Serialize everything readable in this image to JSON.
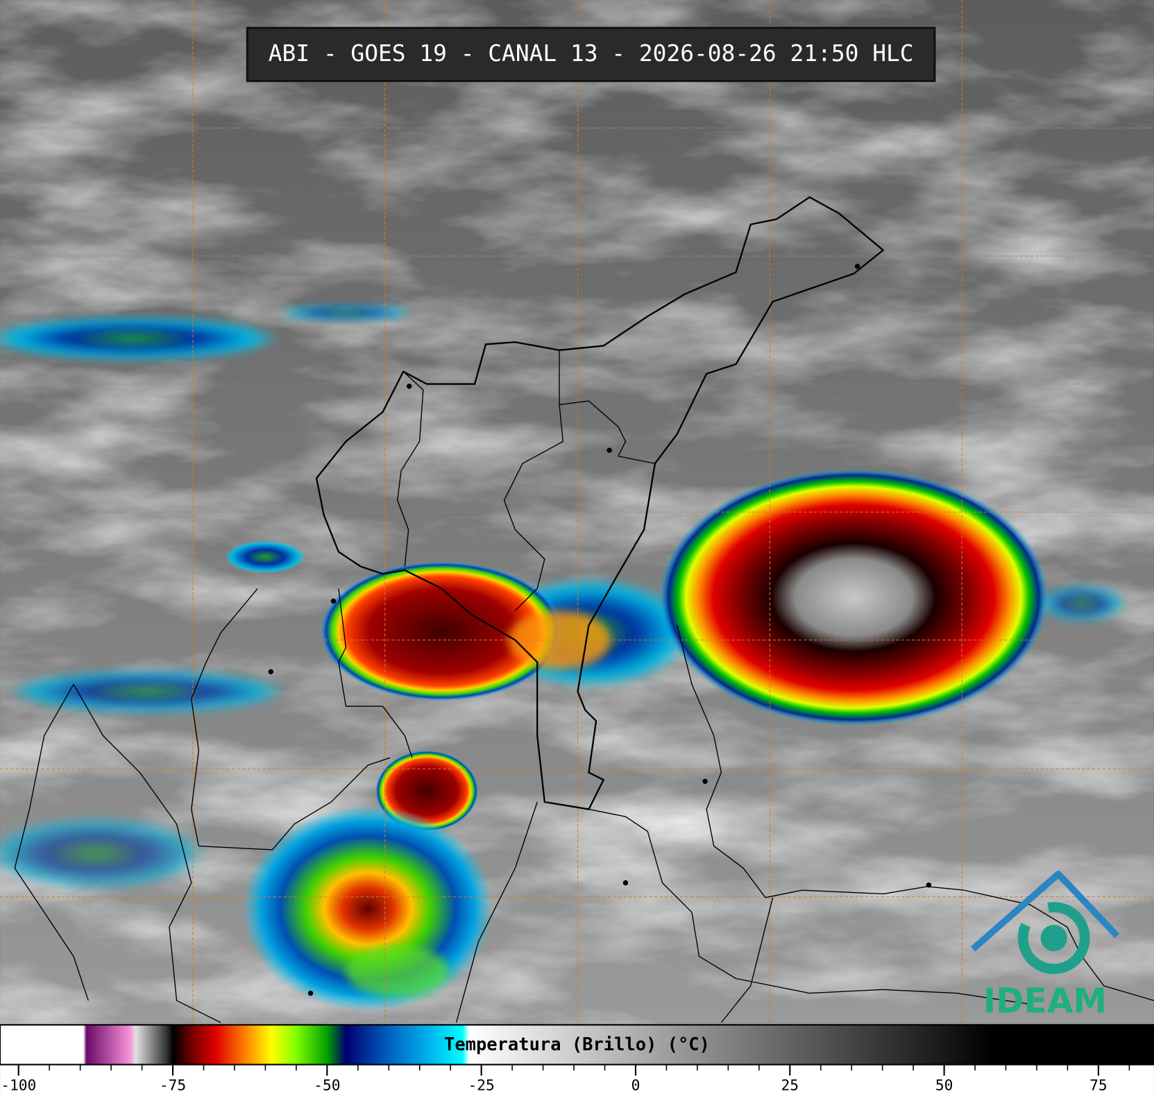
{
  "header": {
    "title": "ABI - GOES 19 - CANAL 13 - 2026-08-26 21:50 HLC"
  },
  "colorbar": {
    "label": "Temperatura (Brillo) (°C)",
    "xlim": [
      -103,
      84
    ],
    "ticks": [
      -100,
      -75,
      -50,
      -25,
      0,
      25,
      50,
      75
    ],
    "minor_ticks": [
      -95,
      -90,
      -85,
      -80,
      -70,
      -65,
      -60,
      -55,
      -45,
      -40,
      -35,
      -30,
      -20,
      -15,
      -10,
      -5,
      5,
      10,
      15,
      20,
      30,
      35,
      40,
      45,
      55,
      60,
      65,
      70,
      80
    ],
    "stops": [
      {
        "value": -103,
        "color": "#ffffff"
      },
      {
        "value": -89.5,
        "color": "#ffffff"
      },
      {
        "value": -89,
        "color": "#6a0a6a"
      },
      {
        "value": -82,
        "color": "#f590d8"
      },
      {
        "value": -81,
        "color": "#e0e0e0"
      },
      {
        "value": -76,
        "color": "#333333"
      },
      {
        "value": -75,
        "color": "#000000"
      },
      {
        "value": -72,
        "color": "#700000"
      },
      {
        "value": -68,
        "color": "#e00000"
      },
      {
        "value": -63,
        "color": "#ff8800"
      },
      {
        "value": -59,
        "color": "#ffff00"
      },
      {
        "value": -55,
        "color": "#80ff00"
      },
      {
        "value": -50,
        "color": "#00a000"
      },
      {
        "value": -47,
        "color": "#000070"
      },
      {
        "value": -40,
        "color": "#0060c0"
      },
      {
        "value": -33,
        "color": "#00b8f0"
      },
      {
        "value": -28,
        "color": "#00ffff"
      },
      {
        "value": -27,
        "color": "#ffffff"
      },
      {
        "value": 58,
        "color": "#000000"
      },
      {
        "value": 84,
        "color": "#000000"
      }
    ]
  },
  "logo": {
    "text": "IDEAM"
  }
}
